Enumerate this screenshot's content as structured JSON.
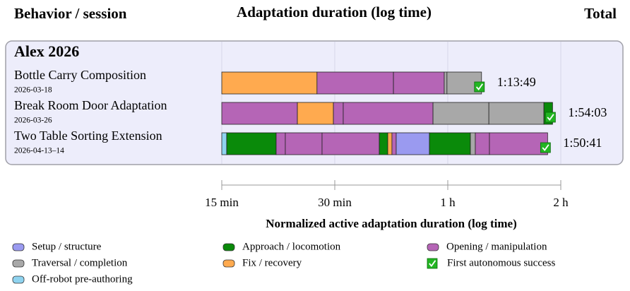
{
  "chart_data": {
    "type": "timeline",
    "title": "Adaptation duration (log time)",
    "left_header": "Behavior / session",
    "right_header": "Total",
    "group": "Alex 2026",
    "x_label": "Normalized active adaptation duration (log time)",
    "log_x": true,
    "grid": true,
    "xlim": [
      15,
      120
    ],
    "xticks": [
      {
        "value": 15,
        "label": "15 min"
      },
      {
        "value": 30,
        "label": "30 min"
      },
      {
        "value": 60,
        "label": "1 h"
      },
      {
        "value": 120,
        "label": "2 h"
      }
    ],
    "legend": [
      {
        "name": "Setup / structure",
        "color": "#9a9af0"
      },
      {
        "name": "Approach / locomotion",
        "color": "#0a8a0a"
      },
      {
        "name": "Opening / manipulation",
        "color": "#b565b6"
      },
      {
        "name": "Traversal / completion",
        "color": "#a8a8a8"
      },
      {
        "name": "Fix / recovery",
        "color": "#ffaa4f"
      },
      {
        "name": "First autonomous success",
        "color": "#22b522"
      },
      {
        "name": "Off-robot pre-authoring",
        "color": "#8fd3ef"
      }
    ],
    "rows": [
      {
        "name": "Bottle Carry Composition",
        "date": "2026-03-18",
        "total": "1:13:49",
        "segments": [
          {
            "value": 26.9,
            "color": "#ffaa4f"
          },
          {
            "value": 16.1,
            "color": "#b565b6"
          },
          {
            "value": 15.7,
            "color": "#b565b6"
          },
          {
            "value": 1.0,
            "color": "#a8a8a8"
          },
          {
            "value": 14.1,
            "color": "#a8a8a8"
          }
        ]
      },
      {
        "name": "Break Room Door Adaptation",
        "date": "2026-03-26",
        "total": "1:54:03",
        "segments": [
          {
            "value": 23.85,
            "color": "#b565b6"
          },
          {
            "value": 5.9,
            "color": "#ffaa4f"
          },
          {
            "value": 1.85,
            "color": "#b565b6"
          },
          {
            "value": 23.2,
            "color": "#b565b6"
          },
          {
            "value": 22.4,
            "color": "#a8a8a8"
          },
          {
            "value": 31.0,
            "color": "#a8a8a8"
          },
          {
            "value": 5.9,
            "color": "#0a8a0a"
          }
        ]
      },
      {
        "name": "Two Table Sorting Extension",
        "date": "2026-04-13–14",
        "total": "1:50:41",
        "segments": [
          {
            "value": 15.46,
            "color": "#8fd3ef"
          },
          {
            "value": 5.48,
            "color": "#0a8a0a"
          },
          {
            "value": 1.21,
            "color": "#b565b6"
          },
          {
            "value": 5.6,
            "color": "#b565b6"
          },
          {
            "value": 11.67,
            "color": "#b565b6"
          },
          {
            "value": 2.1,
            "color": "#0a8a0a"
          },
          {
            "value": 1.08,
            "color": "#ffaa4f"
          },
          {
            "value": 1.13,
            "color": "#b565b6"
          },
          {
            "value": 9.88,
            "color": "#9a9af0"
          },
          {
            "value": 15.31,
            "color": "#0a8a0a"
          },
          {
            "value": 2.12,
            "color": "#a8a8a8"
          },
          {
            "value": 6.43,
            "color": "#b565b6"
          },
          {
            "value": 33.21,
            "color": "#b565b6"
          }
        ]
      }
    ]
  }
}
